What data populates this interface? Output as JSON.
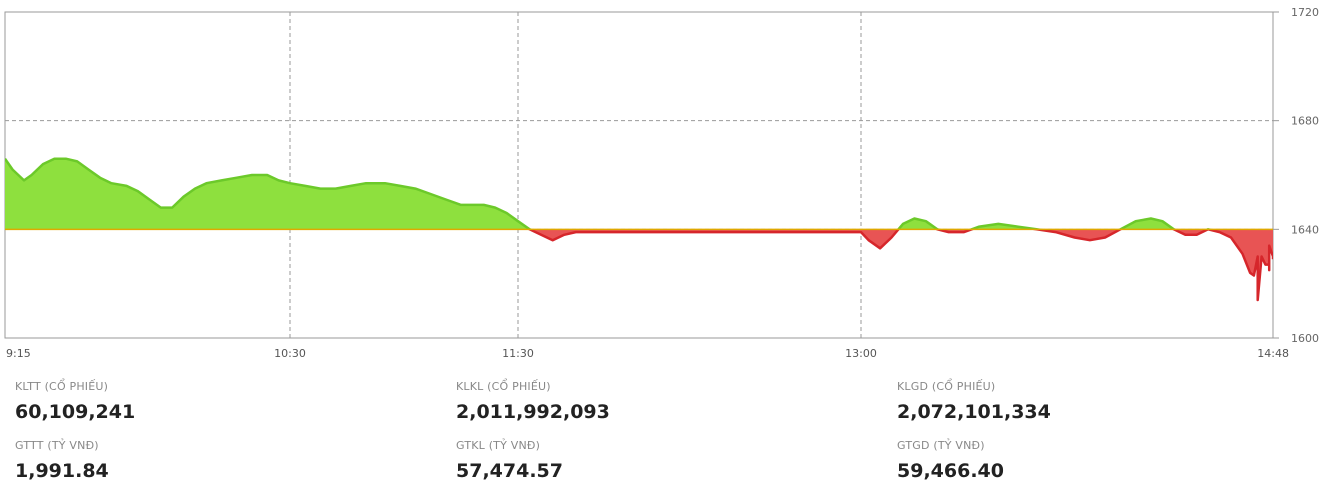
{
  "chart_data": {
    "type": "area",
    "reference_value": 1640,
    "ylim": [
      1600,
      1720
    ],
    "y_ticks": [
      "1720",
      "1680",
      "1640",
      "1600"
    ],
    "x_ticks": [
      "9:15",
      "10:30",
      "11:30",
      "13:00",
      "14:48"
    ],
    "colors": {
      "up_fill": "#8ee03e",
      "up_line": "#6cc92a",
      "down_fill": "#e85454",
      "down_line": "#d6262b",
      "ref_line": "#e0a800"
    },
    "points": [
      [
        "9:15",
        1666
      ],
      [
        "9:17",
        1662
      ],
      [
        "9:20",
        1658
      ],
      [
        "9:22",
        1660
      ],
      [
        "9:25",
        1664
      ],
      [
        "9:28",
        1666
      ],
      [
        "9:31",
        1666
      ],
      [
        "9:34",
        1665
      ],
      [
        "9:37",
        1662
      ],
      [
        "9:40",
        1659
      ],
      [
        "9:43",
        1657
      ],
      [
        "9:47",
        1656
      ],
      [
        "9:50",
        1654
      ],
      [
        "9:53",
        1651
      ],
      [
        "9:56",
        1648
      ],
      [
        "9:59",
        1648
      ],
      [
        "10:02",
        1652
      ],
      [
        "10:05",
        1655
      ],
      [
        "10:08",
        1657
      ],
      [
        "10:12",
        1658
      ],
      [
        "10:16",
        1659
      ],
      [
        "10:20",
        1660
      ],
      [
        "10:24",
        1660
      ],
      [
        "10:27",
        1658
      ],
      [
        "10:30",
        1657
      ],
      [
        "10:34",
        1656
      ],
      [
        "10:38",
        1655
      ],
      [
        "10:42",
        1655
      ],
      [
        "10:46",
        1656
      ],
      [
        "10:50",
        1657
      ],
      [
        "10:55",
        1657
      ],
      [
        "10:59",
        1656
      ],
      [
        "11:03",
        1655
      ],
      [
        "11:07",
        1653
      ],
      [
        "11:11",
        1651
      ],
      [
        "11:15",
        1649
      ],
      [
        "11:18",
        1649
      ],
      [
        "11:21",
        1649
      ],
      [
        "11:24",
        1648
      ],
      [
        "11:27",
        1646
      ],
      [
        "11:30",
        1643
      ],
      [
        "11:33",
        1640
      ],
      [
        "11:36",
        1638
      ],
      [
        "11:39",
        1636
      ],
      [
        "11:42",
        1638
      ],
      [
        "11:45",
        1639
      ],
      [
        "11:48",
        1639
      ],
      [
        "11:52",
        1639
      ],
      [
        "11:56",
        1639
      ],
      [
        "11:59",
        1639
      ],
      [
        "13:00",
        1639
      ],
      [
        "13:02",
        1636
      ],
      [
        "13:05",
        1633
      ],
      [
        "13:08",
        1637
      ],
      [
        "13:11",
        1642
      ],
      [
        "13:14",
        1644
      ],
      [
        "13:17",
        1643
      ],
      [
        "13:20",
        1640
      ],
      [
        "13:23",
        1639
      ],
      [
        "13:27",
        1639
      ],
      [
        "13:31",
        1641
      ],
      [
        "13:36",
        1642
      ],
      [
        "13:41",
        1641
      ],
      [
        "13:46",
        1640
      ],
      [
        "13:51",
        1639
      ],
      [
        "13:56",
        1637
      ],
      [
        "14:00",
        1636
      ],
      [
        "14:04",
        1637
      ],
      [
        "14:08",
        1640
      ],
      [
        "14:12",
        1643
      ],
      [
        "14:16",
        1644
      ],
      [
        "14:19",
        1643
      ],
      [
        "14:22",
        1640
      ],
      [
        "14:25",
        1638
      ],
      [
        "14:28",
        1638
      ],
      [
        "14:31",
        1640
      ],
      [
        "14:34",
        1639
      ],
      [
        "14:37",
        1637
      ],
      [
        "14:40",
        1631
      ],
      [
        "14:42",
        1624
      ],
      [
        "14:43",
        1623
      ],
      [
        "14:44",
        1630
      ],
      [
        "14:44",
        1614
      ],
      [
        "14:45",
        1630
      ],
      [
        "14:46",
        1627
      ],
      [
        "14:47",
        1627
      ],
      [
        "14:47",
        1625
      ],
      [
        "14:47",
        1634
      ],
      [
        "14:48",
        1630
      ],
      [
        "14:48",
        1629
      ]
    ]
  },
  "stats": [
    {
      "label": "KLTT (CỔ PHIẾU)",
      "value": "60,109,241"
    },
    {
      "label": "GTTT (TỶ VNĐ)",
      "value": "1,991.84"
    },
    {
      "label": "KLKL (CỔ PHIẾU)",
      "value": "2,011,992,093"
    },
    {
      "label": "GTKL (TỶ VNĐ)",
      "value": "57,474.57"
    },
    {
      "label": "KLGD (CỔ PHIẾU)",
      "value": "2,072,101,334"
    },
    {
      "label": "GTGD (TỶ VNĐ)",
      "value": "59,466.40"
    }
  ]
}
